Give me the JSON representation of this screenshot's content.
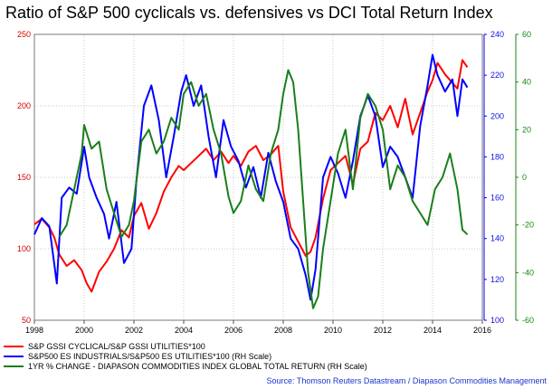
{
  "title": "Ratio of S&P 500 cyclicals vs. defensives vs DCI Total Return Index",
  "source": "Source: Thomson Reuters Datastream / Diapason Commodities Management",
  "colors": {
    "red": "#ff0000",
    "blue": "#0000ff",
    "green": "#1a7f1a"
  },
  "chart_data": {
    "type": "line",
    "x_ticks": [
      "1998",
      "2000",
      "2002",
      "2004",
      "2006",
      "2008",
      "2010",
      "2012",
      "2014",
      "2016"
    ],
    "xlim": [
      1998,
      2016
    ],
    "left_axis": {
      "ticks": [
        "50",
        "100",
        "150",
        "200",
        "250"
      ],
      "ylim": [
        50,
        250
      ]
    },
    "mid_axis": {
      "ticks": [
        "100",
        "120",
        "140",
        "160",
        "180",
        "200",
        "220",
        "240"
      ],
      "ylim": [
        100,
        240
      ]
    },
    "right_axis": {
      "ticks": [
        "-60",
        "-40",
        "-20",
        "0",
        "20",
        "40",
        "60"
      ],
      "ylim": [
        -60,
        60
      ]
    },
    "grid": true,
    "legend_position": "bottom-left",
    "series": [
      {
        "name": "S&P GSSI CYCLICAL/S&P GSSI UTILITIES*100",
        "axis": "left",
        "color": "#ff0000",
        "x": [
          1998.0,
          1998.3,
          1998.6,
          1998.8,
          1999.0,
          1999.3,
          1999.6,
          1999.9,
          2000.1,
          2000.3,
          2000.6,
          2000.9,
          2001.2,
          2001.5,
          2001.8,
          2002.0,
          2002.3,
          2002.6,
          2002.9,
          2003.2,
          2003.5,
          2003.8,
          2004.0,
          2004.3,
          2004.6,
          2004.9,
          2005.2,
          2005.5,
          2005.8,
          2006.0,
          2006.3,
          2006.6,
          2006.9,
          2007.2,
          2007.5,
          2007.8,
          2008.0,
          2008.3,
          2008.6,
          2008.9,
          2009.1,
          2009.3,
          2009.6,
          2009.9,
          2010.2,
          2010.5,
          2010.8,
          2011.1,
          2011.4,
          2011.7,
          2012.0,
          2012.3,
          2012.6,
          2012.9,
          2013.2,
          2013.5,
          2013.8,
          2014.0,
          2014.2,
          2014.5,
          2014.8,
          2015.0,
          2015.2,
          2015.4
        ],
        "values": [
          117,
          121,
          115,
          108,
          96,
          88,
          92,
          85,
          76,
          70,
          84,
          91,
          100,
          113,
          108,
          123,
          132,
          114,
          125,
          140,
          150,
          158,
          155,
          160,
          165,
          170,
          162,
          168,
          160,
          165,
          158,
          168,
          172,
          162,
          166,
          172,
          140,
          115,
          105,
          95,
          98,
          108,
          135,
          155,
          160,
          165,
          145,
          170,
          175,
          195,
          190,
          200,
          185,
          205,
          180,
          195,
          210,
          218,
          230,
          222,
          216,
          212,
          232,
          227
        ]
      },
      {
        "name": "S&P500 ES INDUSTRIALS/S&P500 ES UTILITIES*100 (RH Scale)",
        "axis": "mid",
        "color": "#0000ff",
        "x": [
          1998.0,
          1998.3,
          1998.6,
          1998.9,
          1999.1,
          1999.4,
          1999.7,
          2000.0,
          2000.2,
          2000.5,
          2000.8,
          2001.0,
          2001.3,
          2001.6,
          2001.9,
          2002.1,
          2002.4,
          2002.7,
          2003.0,
          2003.3,
          2003.6,
          2003.9,
          2004.1,
          2004.4,
          2004.7,
          2005.0,
          2005.3,
          2005.6,
          2005.9,
          2006.2,
          2006.5,
          2006.8,
          2007.1,
          2007.4,
          2007.7,
          2008.0,
          2008.3,
          2008.6,
          2008.9,
          2009.1,
          2009.3,
          2009.6,
          2009.9,
          2010.2,
          2010.5,
          2010.8,
          2011.1,
          2011.4,
          2011.7,
          2012.0,
          2012.3,
          2012.6,
          2012.9,
          2013.2,
          2013.5,
          2013.8,
          2014.0,
          2014.2,
          2014.5,
          2014.8,
          2015.0,
          2015.2,
          2015.4
        ],
        "values": [
          142,
          150,
          146,
          118,
          160,
          165,
          162,
          185,
          170,
          160,
          152,
          140,
          158,
          128,
          135,
          168,
          205,
          215,
          198,
          170,
          190,
          212,
          220,
          205,
          215,
          190,
          170,
          198,
          185,
          178,
          165,
          175,
          160,
          182,
          168,
          158,
          140,
          135,
          122,
          110,
          125,
          170,
          180,
          172,
          160,
          178,
          200,
          210,
          200,
          175,
          185,
          180,
          170,
          160,
          195,
          215,
          230,
          220,
          212,
          218,
          200,
          218,
          214
        ]
      },
      {
        "name": "1YR % CHANGE - DIAPASON COMMODITIES INDEX GLOBAL TOTAL RETURN (RH Scale)",
        "axis": "right",
        "color": "#1a7f1a",
        "x": [
          1999.0,
          1999.3,
          1999.6,
          1999.9,
          2000.0,
          2000.3,
          2000.6,
          2000.9,
          2001.2,
          2001.5,
          2001.8,
          2002.0,
          2002.3,
          2002.6,
          2002.9,
          2003.2,
          2003.5,
          2003.8,
          2004.0,
          2004.3,
          2004.6,
          2004.9,
          2005.2,
          2005.5,
          2005.8,
          2006.0,
          2006.3,
          2006.6,
          2006.9,
          2007.2,
          2007.5,
          2007.8,
          2008.0,
          2008.2,
          2008.4,
          2008.6,
          2008.8,
          2009.0,
          2009.2,
          2009.4,
          2009.6,
          2009.9,
          2010.2,
          2010.5,
          2010.8,
          2011.1,
          2011.4,
          2011.7,
          2012.0,
          2012.3,
          2012.6,
          2012.9,
          2013.2,
          2013.5,
          2013.8,
          2014.1,
          2014.4,
          2014.7,
          2015.0,
          2015.2,
          2015.4
        ],
        "values": [
          -25,
          -20,
          -5,
          10,
          22,
          12,
          15,
          -5,
          -15,
          -25,
          -20,
          -10,
          15,
          20,
          10,
          15,
          25,
          20,
          35,
          40,
          30,
          35,
          20,
          10,
          -8,
          -15,
          -10,
          5,
          -5,
          -10,
          10,
          20,
          35,
          45,
          40,
          20,
          -10,
          -40,
          -55,
          -50,
          -30,
          -10,
          10,
          20,
          -5,
          25,
          35,
          30,
          20,
          -5,
          5,
          0,
          -10,
          -15,
          -20,
          -5,
          0,
          10,
          -5,
          -22,
          -24
        ]
      }
    ]
  },
  "legend": [
    {
      "label": "S&P GSSI CYCLICAL/S&P GSSI UTILITIES*100",
      "color": "#ff0000"
    },
    {
      "label": "S&P500 ES INDUSTRIALS/S&P500 ES UTILITIES*100 (RH Scale)",
      "color": "#0000ff"
    },
    {
      "label": "1YR % CHANGE - DIAPASON COMMODITIES INDEX GLOBAL TOTAL RETURN (RH Scale)",
      "color": "#1a7f1a"
    }
  ]
}
